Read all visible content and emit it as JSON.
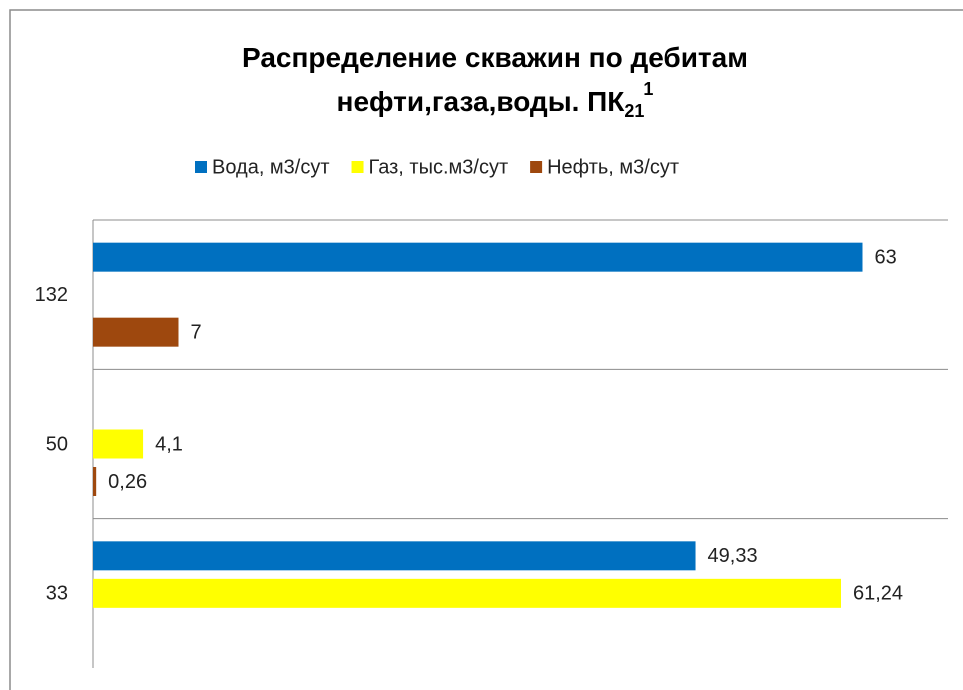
{
  "chart_data": {
    "type": "bar",
    "orientation": "horizontal",
    "title": [
      "Распределение скважин по дебитам",
      "нефти,газа,воды. ПК"
    ],
    "title_subscript": "21",
    "title_superscript": "1",
    "categories": [
      "132",
      "50",
      "33"
    ],
    "series": [
      {
        "name": "Вода, м3/сут",
        "color": "#0070c0",
        "values": [
          63,
          null,
          49.33
        ],
        "value_labels": [
          "63",
          null,
          "49,33"
        ]
      },
      {
        "name": "Газ, тыс.м3/сут",
        "color": "#ffff00",
        "values": [
          null,
          4.1,
          61.24
        ],
        "value_labels": [
          null,
          "4,1",
          "61,24"
        ]
      },
      {
        "name": "Нефть, м3/сут",
        "color": "#9e480e",
        "values": [
          7,
          0.26,
          null
        ],
        "value_labels": [
          "7",
          "0,26",
          null
        ]
      }
    ],
    "xlim": [
      0,
      70
    ],
    "legend": "top",
    "grid": true
  }
}
